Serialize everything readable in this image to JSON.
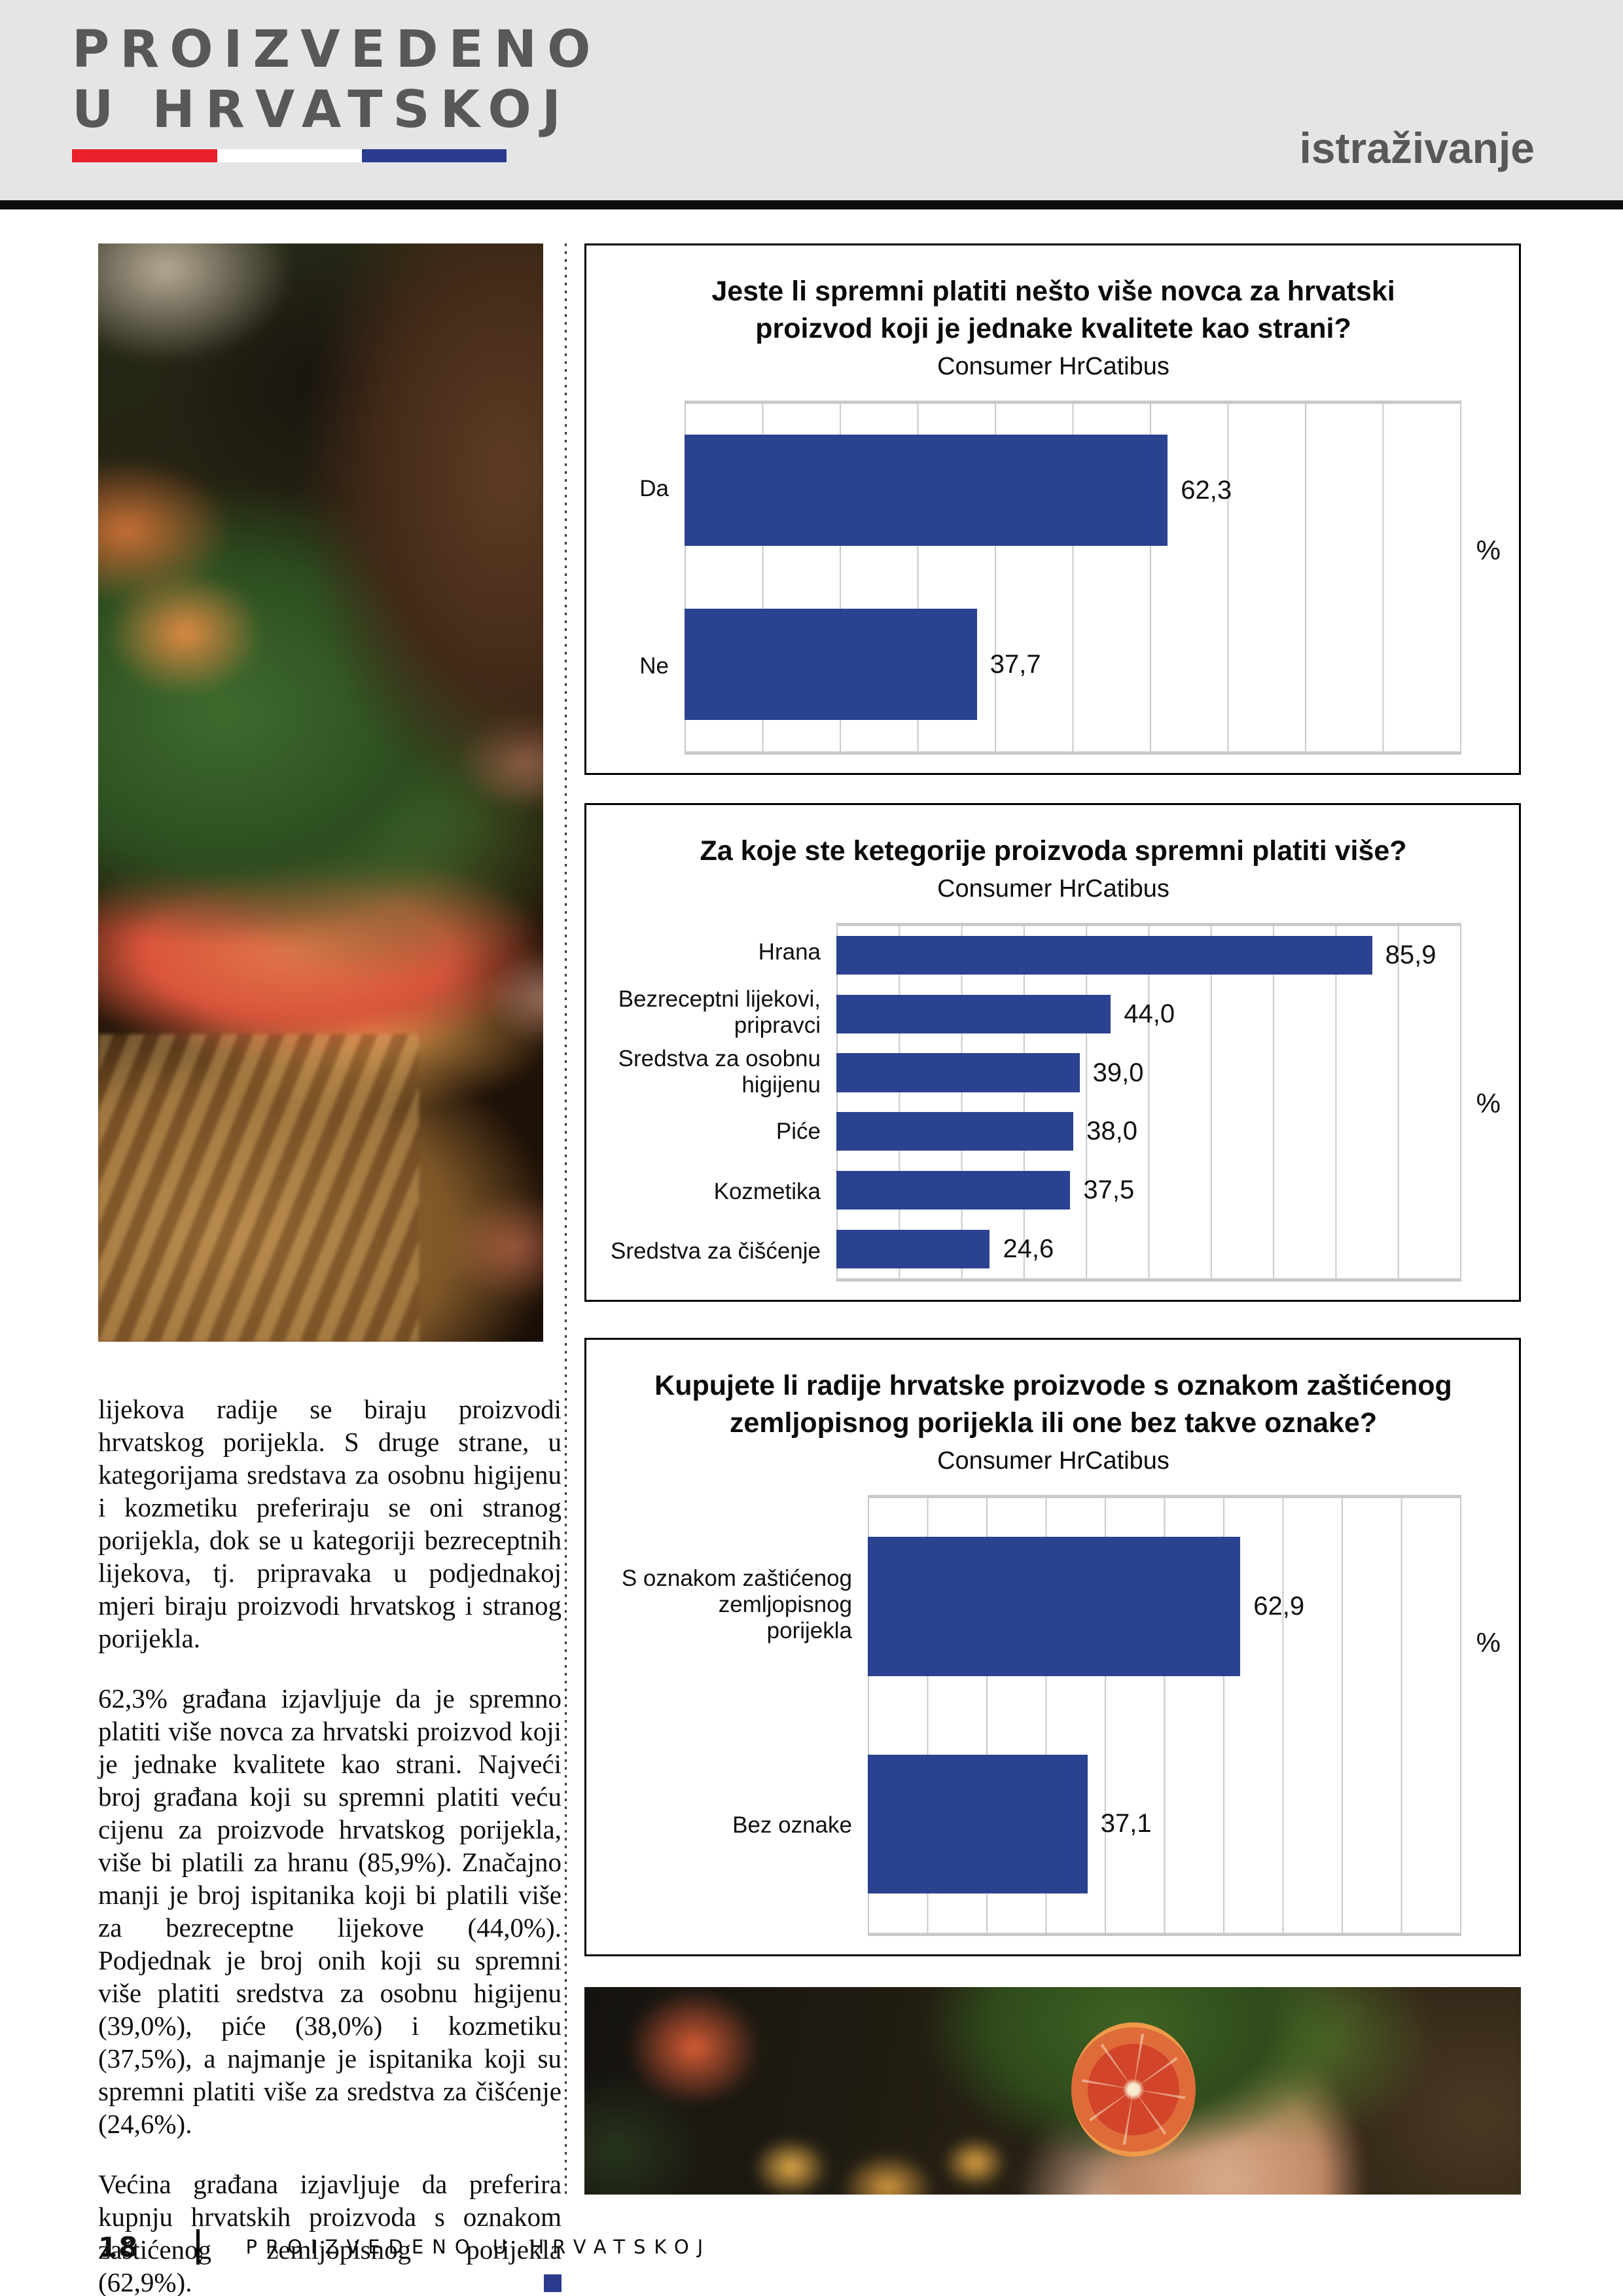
{
  "header": {
    "logo_line1": "PROIZVEDENO",
    "logo_line2": "U HRVATSKOJ",
    "section_label": "istraživanje"
  },
  "colors": {
    "accent_blue": "#2a428f",
    "flag_red": "#e8212b",
    "flag_white": "#ffffff",
    "flag_blue": "#2b3b8f",
    "logo_gray": "#57585a"
  },
  "article": {
    "paragraphs": [
      "lijekova radije se biraju proizvodi hrvatskog porijekla. S druge strane, u kategorijama sredstava za osobnu higijenu i kozmetiku preferiraju se oni stranog porijekla, dok se u kategoriji bezreceptnih lijekova, tj. pripravaka u podjednakoj mjeri biraju proizvodi hrvatskog i stranog porijekla.",
      "62,3% građana izjavljuje da je spremno platiti više novca za hrvatski proizvod koji je jednake kvalitete kao strani. Najveći broj građana koji su spremni platiti veću cijenu za proizvode hrvatskog porijekla, više bi platili za hranu (85,9%). Značajno manji je broj ispitanika koji bi platili više za bezreceptne lijekove (44,0%). Podjednak je broj onih koji su spremni više platiti sredstva za osobnu higijenu (39,0%), piće (38,0%) i kozmetiku (37,5%), a najmanje je ispitanika koji su spremni platiti više za sredstva za čišćenje (24,6%).",
      "Većina građana izjavljuje da preferira kupnju hrvatskih proizvoda s oznakom zaštićenog zemljopisnog porijekla (62,9%)."
    ]
  },
  "footer": {
    "page_number": "18",
    "magazine_title": "PROIZVEDENO U HRVATSKOJ"
  },
  "chart_data": [
    {
      "type": "bar",
      "orientation": "horizontal",
      "title": "Jeste li spremni platiti nešto više novca za hrvatski proizvod koji je jednake kvalitete kao strani?",
      "subtitle": "Consumer HrCatibus",
      "unit_label": "%",
      "xlim": [
        0,
        100
      ],
      "grid_step": 10,
      "grid": true,
      "legend": false,
      "categories": [
        "Da",
        "Ne"
      ],
      "values": [
        62.3,
        37.7
      ],
      "value_labels": [
        "62,3",
        "37,7"
      ]
    },
    {
      "type": "bar",
      "orientation": "horizontal",
      "title": "Za koje ste ketegorije proizvoda spremni platiti više?",
      "subtitle": "Consumer HrCatibus",
      "unit_label": "%",
      "xlim": [
        0,
        100
      ],
      "grid_step": 10,
      "grid": true,
      "legend": false,
      "categories": [
        "Hrana",
        "Bezreceptni lijekovi,\npripravci",
        "Sredstva za osobnu\nhigijenu",
        "Piće",
        "Kozmetika",
        "Sredstva za čišćenje"
      ],
      "values": [
        85.9,
        44.0,
        39.0,
        38.0,
        37.5,
        24.6
      ],
      "value_labels": [
        "85,9",
        "44,0",
        "39,0",
        "38,0",
        "37,5",
        "24,6"
      ]
    },
    {
      "type": "bar",
      "orientation": "horizontal",
      "title": "Kupujete li radije hrvatske proizvode s oznakom zaštićenog zemljopisnog porijekla ili one bez takve oznake?",
      "subtitle": "Consumer HrCatibus",
      "unit_label": "%",
      "xlim": [
        0,
        100
      ],
      "grid_step": 10,
      "grid": true,
      "legend": false,
      "categories": [
        "S oznakom zaštićenog\nzemljopisnog\nporijekla",
        "Bez oznake"
      ],
      "values": [
        62.9,
        37.1
      ],
      "value_labels": [
        "62,9",
        "37,1"
      ]
    }
  ]
}
